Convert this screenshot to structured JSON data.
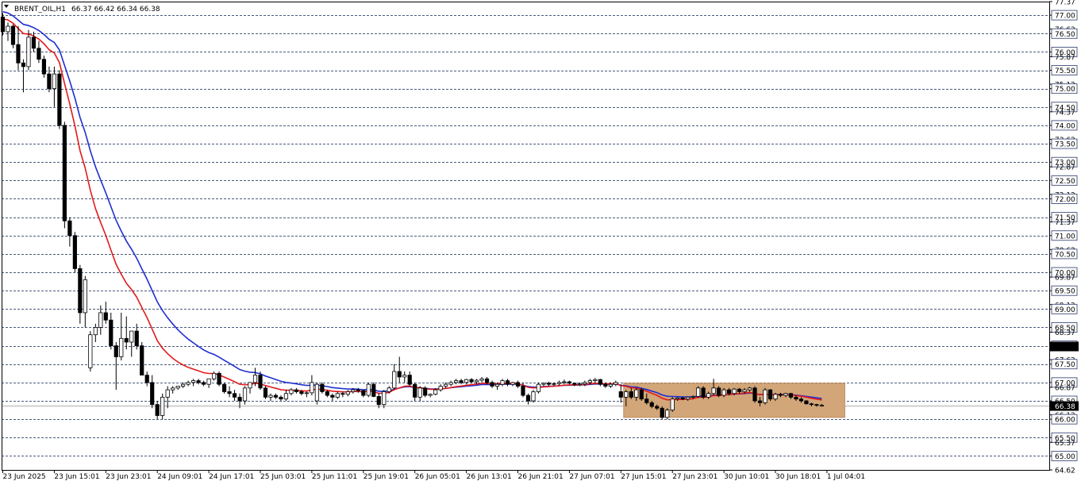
{
  "header": {
    "symbol": "BRENT_OIL,H1",
    "ohlc": "66.37 66.42 66.34 66.38"
  },
  "colors": {
    "background": "#ffffff",
    "grid": "#4a5a7a",
    "candle_bull_fill": "#ffffff",
    "candle_bear_fill": "#000000",
    "ma_fast": "#e31a1c",
    "ma_slow": "#1f2fd0",
    "range_box": "#d2a679",
    "price_marker": "#000000",
    "level_marker": "#000000"
  },
  "chart_data": {
    "type": "candlestick",
    "ylim": [
      64.62,
      77.37
    ],
    "grid_levels": [
      77.0,
      76.5,
      76.0,
      75.5,
      75.0,
      74.5,
      74.0,
      73.5,
      73.0,
      72.5,
      72.0,
      71.5,
      71.0,
      70.5,
      70.0,
      69.5,
      69.0,
      68.5,
      68.0,
      67.5,
      67.0,
      66.5,
      66.0,
      65.5,
      65.0
    ],
    "y_tick_labels": [
      "77.37",
      "77.00",
      "76.62",
      "76.50",
      "76.00",
      "75.87",
      "75.50",
      "75.12",
      "75.00",
      "74.50",
      "74.37",
      "74.00",
      "73.62",
      "73.50",
      "73.00",
      "72.87",
      "72.50",
      "72.12",
      "72.00",
      "71.50",
      "71.37",
      "71.00",
      "70.62",
      "70.50",
      "70.00",
      "69.87",
      "69.50",
      "69.12",
      "69.00",
      "68.50",
      "68.37",
      "68.00",
      "67.62",
      "67.50",
      "67.00",
      "66.87",
      "66.50",
      "66.12",
      "66.00",
      "65.50",
      "65.37",
      "65.00",
      "64.62"
    ],
    "boxed_labels": [
      "77.00",
      "76.50",
      "76.00",
      "75.50",
      "75.00",
      "74.50",
      "74.00",
      "73.50",
      "73.00",
      "72.50",
      "72.00",
      "71.50",
      "71.00",
      "70.50",
      "70.00",
      "69.50",
      "69.00",
      "68.50",
      "68.00",
      "67.50",
      "67.00",
      "66.50",
      "66.00",
      "65.50",
      "65.00"
    ],
    "current_price": 66.38,
    "current_price_label": "66.38",
    "level_marker": 67.98,
    "x_labels": [
      {
        "label": "23 Jun 2025",
        "index": 0
      },
      {
        "label": "23 Jun 15:01",
        "index": 10
      },
      {
        "label": "23 Jun 23:01",
        "index": 20
      },
      {
        "label": "24 Jun 09:01",
        "index": 30
      },
      {
        "label": "24 Jun 17:01",
        "index": 40
      },
      {
        "label": "25 Jun 03:01",
        "index": 50
      },
      {
        "label": "25 Jun 11:01",
        "index": 60
      },
      {
        "label": "25 Jun 19:01",
        "index": 70
      },
      {
        "label": "26 Jun 05:01",
        "index": 80
      },
      {
        "label": "26 Jun 13:01",
        "index": 90
      },
      {
        "label": "26 Jun 21:01",
        "index": 100
      },
      {
        "label": "27 Jun 07:01",
        "index": 110
      },
      {
        "label": "27 Jun 15:01",
        "index": 120
      },
      {
        "label": "27 Jun 23:01",
        "index": 130
      },
      {
        "label": "30 Jun 10:01",
        "index": 140
      },
      {
        "label": "30 Jun 18:01",
        "index": 150
      },
      {
        "label": "1 Jul 04:01",
        "index": 160
      }
    ],
    "range_box": {
      "start_index": 121,
      "end_index": 163,
      "high": 66.98,
      "low": 66.05
    },
    "candles": [
      [
        76.95,
        77.05,
        76.45,
        76.55
      ],
      [
        76.55,
        76.8,
        76.3,
        76.7
      ],
      [
        76.7,
        76.75,
        76.1,
        76.2
      ],
      [
        76.2,
        76.7,
        75.5,
        75.7
      ],
      [
        75.7,
        75.8,
        74.9,
        75.6
      ],
      [
        75.6,
        76.6,
        75.5,
        76.4
      ],
      [
        76.4,
        76.55,
        76.0,
        76.1
      ],
      [
        76.1,
        76.3,
        75.7,
        75.8
      ],
      [
        75.8,
        75.9,
        75.3,
        75.4
      ],
      [
        75.4,
        75.6,
        74.9,
        75.0
      ],
      [
        75.0,
        75.6,
        74.5,
        75.4
      ],
      [
        75.4,
        75.5,
        73.9,
        74.0
      ],
      [
        74.0,
        74.1,
        71.2,
        71.4
      ],
      [
        71.4,
        71.5,
        70.7,
        71.0
      ],
      [
        71.0,
        71.1,
        70.0,
        70.1
      ],
      [
        70.1,
        70.2,
        68.6,
        68.9
      ],
      [
        68.9,
        69.9,
        68.5,
        69.8
      ],
      [
        67.4,
        68.4,
        67.3,
        68.3
      ],
      [
        68.3,
        68.6,
        68.1,
        68.5
      ],
      [
        68.5,
        69.1,
        68.3,
        68.9
      ],
      [
        68.9,
        69.2,
        68.6,
        68.7
      ],
      [
        68.7,
        68.9,
        67.9,
        68.0
      ],
      [
        68.0,
        68.1,
        66.8,
        67.7
      ],
      [
        67.7,
        68.9,
        67.6,
        68.2
      ],
      [
        68.2,
        68.8,
        67.9,
        68.1
      ],
      [
        68.1,
        68.4,
        67.7,
        68.4
      ],
      [
        68.4,
        68.6,
        67.9,
        68.0
      ],
      [
        68.0,
        68.1,
        67.3,
        67.2
      ],
      [
        67.2,
        67.3,
        66.9,
        67.0
      ],
      [
        67.0,
        67.2,
        66.3,
        66.4
      ],
      [
        66.4,
        66.5,
        66.0,
        66.1
      ],
      [
        66.1,
        66.7,
        66.0,
        66.6
      ],
      [
        66.6,
        66.9,
        66.3,
        66.8
      ],
      [
        66.8,
        66.9,
        66.7,
        66.85
      ],
      [
        66.85,
        66.9,
        66.8,
        66.9
      ],
      [
        66.9,
        67.0,
        66.85,
        66.95
      ],
      [
        66.95,
        67.05,
        66.9,
        67.0
      ],
      [
        67.0,
        67.1,
        66.9,
        67.05
      ],
      [
        67.05,
        67.1,
        66.95,
        67.0
      ],
      [
        67.0,
        67.05,
        66.9,
        66.95
      ],
      [
        66.95,
        67.1,
        66.85,
        67.1
      ],
      [
        67.1,
        67.3,
        67.05,
        67.25
      ],
      [
        67.25,
        67.3,
        66.9,
        66.95
      ],
      [
        66.95,
        67.0,
        66.7,
        66.75
      ],
      [
        66.75,
        66.9,
        66.6,
        66.7
      ],
      [
        66.7,
        66.8,
        66.5,
        66.6
      ],
      [
        66.6,
        66.7,
        66.3,
        66.5
      ],
      [
        66.5,
        66.9,
        66.4,
        66.85
      ],
      [
        66.85,
        67.0,
        66.7,
        67.0
      ],
      [
        67.0,
        67.4,
        66.9,
        67.2
      ],
      [
        67.2,
        67.3,
        66.8,
        66.85
      ],
      [
        66.85,
        66.9,
        66.55,
        66.6
      ],
      [
        66.6,
        66.7,
        66.5,
        66.65
      ],
      [
        66.65,
        66.7,
        66.55,
        66.6
      ],
      [
        66.6,
        66.65,
        66.5,
        66.55
      ],
      [
        66.55,
        66.8,
        66.5,
        66.7
      ],
      [
        66.7,
        66.85,
        66.65,
        66.8
      ],
      [
        66.8,
        66.85,
        66.7,
        66.75
      ],
      [
        66.75,
        66.8,
        66.65,
        66.7
      ],
      [
        66.7,
        66.75,
        66.6,
        66.72
      ],
      [
        66.72,
        67.2,
        66.65,
        67.0
      ],
      [
        66.5,
        67.0,
        66.4,
        66.95
      ],
      [
        66.95,
        67.0,
        66.7,
        66.75
      ],
      [
        66.75,
        66.8,
        66.6,
        66.65
      ],
      [
        66.65,
        66.7,
        66.5,
        66.6
      ],
      [
        66.6,
        66.75,
        66.55,
        66.7
      ],
      [
        66.7,
        66.75,
        66.6,
        66.68
      ],
      [
        66.68,
        66.8,
        66.62,
        66.75
      ],
      [
        66.75,
        66.85,
        66.7,
        66.8
      ],
      [
        66.8,
        66.85,
        66.72,
        66.78
      ],
      [
        66.78,
        66.8,
        66.6,
        66.65
      ],
      [
        66.65,
        67.0,
        66.6,
        66.95
      ],
      [
        66.95,
        67.0,
        66.6,
        66.62
      ],
      [
        66.62,
        66.7,
        66.3,
        66.4
      ],
      [
        66.4,
        66.8,
        66.3,
        66.75
      ],
      [
        66.75,
        66.9,
        66.7,
        66.85
      ],
      [
        66.85,
        67.5,
        66.8,
        67.3
      ],
      [
        67.3,
        67.7,
        67.0,
        67.15
      ],
      [
        67.15,
        67.3,
        67.0,
        67.2
      ],
      [
        67.2,
        67.3,
        66.9,
        66.95
      ],
      [
        66.95,
        67.0,
        66.5,
        66.6
      ],
      [
        66.6,
        66.9,
        66.5,
        66.85
      ],
      [
        66.85,
        66.9,
        66.6,
        66.65
      ],
      [
        66.65,
        66.7,
        66.6,
        66.68
      ],
      [
        66.68,
        66.85,
        66.65,
        66.8
      ],
      [
        66.8,
        66.95,
        66.75,
        66.9
      ],
      [
        66.9,
        67.0,
        66.85,
        66.95
      ],
      [
        66.95,
        67.05,
        66.9,
        67.0
      ],
      [
        67.0,
        67.1,
        66.95,
        67.05
      ],
      [
        67.05,
        67.1,
        66.95,
        67.0
      ],
      [
        67.0,
        67.1,
        66.95,
        67.08
      ],
      [
        67.08,
        67.12,
        66.98,
        67.02
      ],
      [
        67.02,
        67.1,
        66.95,
        67.06
      ],
      [
        67.06,
        67.15,
        67.0,
        67.1
      ],
      [
        67.1,
        67.15,
        66.95,
        67.0
      ],
      [
        67.0,
        67.05,
        66.85,
        66.9
      ],
      [
        66.9,
        67.0,
        66.8,
        66.95
      ],
      [
        66.95,
        67.1,
        66.9,
        67.05
      ],
      [
        67.05,
        67.1,
        66.9,
        66.95
      ],
      [
        66.95,
        67.02,
        66.9,
        67.0
      ],
      [
        67.0,
        67.05,
        66.85,
        66.9
      ],
      [
        66.9,
        67.0,
        66.6,
        66.65
      ],
      [
        66.65,
        66.7,
        66.4,
        66.5
      ],
      [
        66.5,
        66.8,
        66.45,
        66.75
      ],
      [
        66.75,
        67.0,
        66.7,
        66.95
      ],
      [
        66.95,
        67.0,
        66.9,
        66.98
      ],
      [
        66.98,
        67.02,
        66.9,
        66.95
      ],
      [
        66.95,
        67.0,
        66.9,
        66.97
      ],
      [
        66.97,
        67.05,
        66.92,
        67.0
      ],
      [
        67.0,
        67.08,
        66.95,
        67.02
      ],
      [
        67.02,
        67.05,
        66.95,
        66.98
      ],
      [
        66.98,
        67.0,
        66.9,
        66.95
      ],
      [
        66.95,
        67.0,
        66.9,
        66.96
      ],
      [
        66.96,
        67.05,
        66.9,
        67.0
      ],
      [
        67.0,
        67.1,
        66.95,
        67.05
      ],
      [
        67.05,
        67.12,
        66.98,
        67.08
      ],
      [
        67.08,
        67.1,
        66.9,
        66.95
      ],
      [
        66.95,
        67.0,
        66.85,
        66.9
      ],
      [
        66.9,
        67.0,
        66.85,
        66.95
      ],
      [
        66.95,
        67.05,
        66.9,
        67.0
      ],
      [
        66.75,
        66.95,
        66.45,
        66.6
      ],
      [
        66.6,
        66.8,
        66.35,
        66.75
      ],
      [
        66.75,
        66.85,
        66.55,
        66.6
      ],
      [
        66.6,
        66.85,
        66.5,
        66.8
      ],
      [
        66.8,
        66.85,
        66.5,
        66.55
      ],
      [
        66.55,
        66.7,
        66.4,
        66.45
      ],
      [
        66.45,
        66.5,
        66.3,
        66.35
      ],
      [
        66.35,
        66.4,
        66.25,
        66.3
      ],
      [
        66.3,
        66.35,
        66.0,
        66.05
      ],
      [
        66.05,
        66.3,
        66.0,
        66.25
      ],
      [
        66.25,
        66.6,
        66.2,
        66.55
      ],
      [
        66.55,
        66.6,
        66.5,
        66.58
      ],
      [
        66.58,
        66.62,
        66.52,
        66.55
      ],
      [
        66.55,
        66.62,
        66.5,
        66.6
      ],
      [
        66.6,
        66.65,
        66.55,
        66.62
      ],
      [
        66.62,
        66.9,
        66.58,
        66.85
      ],
      [
        66.85,
        66.9,
        66.55,
        66.6
      ],
      [
        66.6,
        66.75,
        66.55,
        66.7
      ],
      [
        66.7,
        67.1,
        66.65,
        66.85
      ],
      [
        66.85,
        66.9,
        66.6,
        66.65
      ],
      [
        66.65,
        66.85,
        66.6,
        66.8
      ],
      [
        66.8,
        66.85,
        66.65,
        66.7
      ],
      [
        66.7,
        66.85,
        66.65,
        66.82
      ],
      [
        66.82,
        66.85,
        66.7,
        66.75
      ],
      [
        66.75,
        66.85,
        66.7,
        66.8
      ],
      [
        66.8,
        66.88,
        66.75,
        66.85
      ],
      [
        66.85,
        66.9,
        66.45,
        66.5
      ],
      [
        66.5,
        66.6,
        66.35,
        66.45
      ],
      [
        66.45,
        66.85,
        66.4,
        66.8
      ],
      [
        66.8,
        66.82,
        66.5,
        66.55
      ],
      [
        66.55,
        66.72,
        66.5,
        66.68
      ],
      [
        66.68,
        66.72,
        66.6,
        66.65
      ],
      [
        66.65,
        66.72,
        66.6,
        66.7
      ],
      [
        66.7,
        66.72,
        66.55,
        66.6
      ],
      [
        66.6,
        66.65,
        66.5,
        66.55
      ],
      [
        66.55,
        66.6,
        66.45,
        66.5
      ],
      [
        66.5,
        66.52,
        66.4,
        66.42
      ],
      [
        66.42,
        66.45,
        66.35,
        66.4
      ],
      [
        66.4,
        66.42,
        66.34,
        66.38
      ],
      [
        66.38,
        66.42,
        66.34,
        66.38
      ]
    ]
  }
}
